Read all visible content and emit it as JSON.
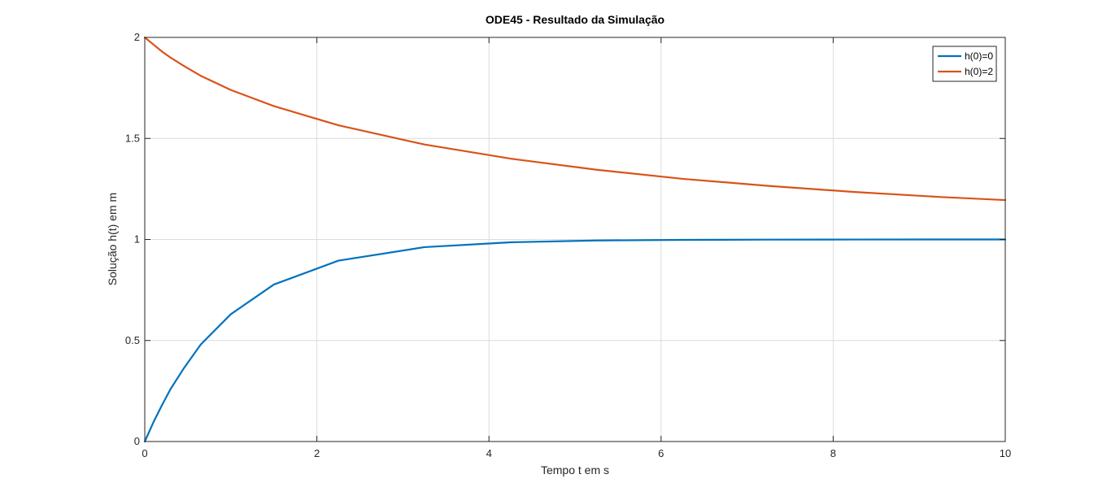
{
  "chart_data": {
    "type": "line",
    "title": "ODE45 - Resultado da Simulação",
    "xlabel": "Tempo t em s",
    "ylabel": "Solução h(t) em m",
    "xlim": [
      0,
      10
    ],
    "ylim": [
      0,
      2
    ],
    "xticks": [
      0,
      2,
      4,
      6,
      8,
      10
    ],
    "yticks": [
      0,
      0.5,
      1,
      1.5,
      2
    ],
    "xtick_labels": [
      "0",
      "2",
      "4",
      "6",
      "8",
      "10"
    ],
    "ytick_labels": [
      "0",
      "0.5",
      "1",
      "1.5",
      "2"
    ],
    "grid": true,
    "legend_position": "top-right",
    "series": [
      {
        "name": "h(0)=0",
        "color": "#0072BD",
        "x": [
          0,
          0.1,
          0.2,
          0.3,
          0.45,
          0.65,
          1.0,
          1.5,
          2.25,
          3.25,
          4.25,
          5.25,
          6.25,
          7.25,
          8.25,
          9.25,
          10
        ],
        "y": [
          0,
          0.095,
          0.18,
          0.26,
          0.36,
          0.48,
          0.63,
          0.777,
          0.895,
          0.962,
          0.986,
          0.995,
          0.998,
          0.9993,
          0.9997,
          0.9999,
          1.0
        ]
      },
      {
        "name": "h(0)=2",
        "color": "#D95319",
        "x": [
          0,
          0.1,
          0.2,
          0.3,
          0.45,
          0.65,
          1.0,
          1.5,
          2.25,
          3.25,
          4.25,
          5.25,
          6.25,
          7.25,
          8.25,
          9.25,
          10
        ],
        "y": [
          2.0,
          1.965,
          1.93,
          1.9,
          1.86,
          1.81,
          1.74,
          1.66,
          1.565,
          1.47,
          1.4,
          1.345,
          1.3,
          1.265,
          1.235,
          1.21,
          1.195
        ]
      }
    ]
  }
}
